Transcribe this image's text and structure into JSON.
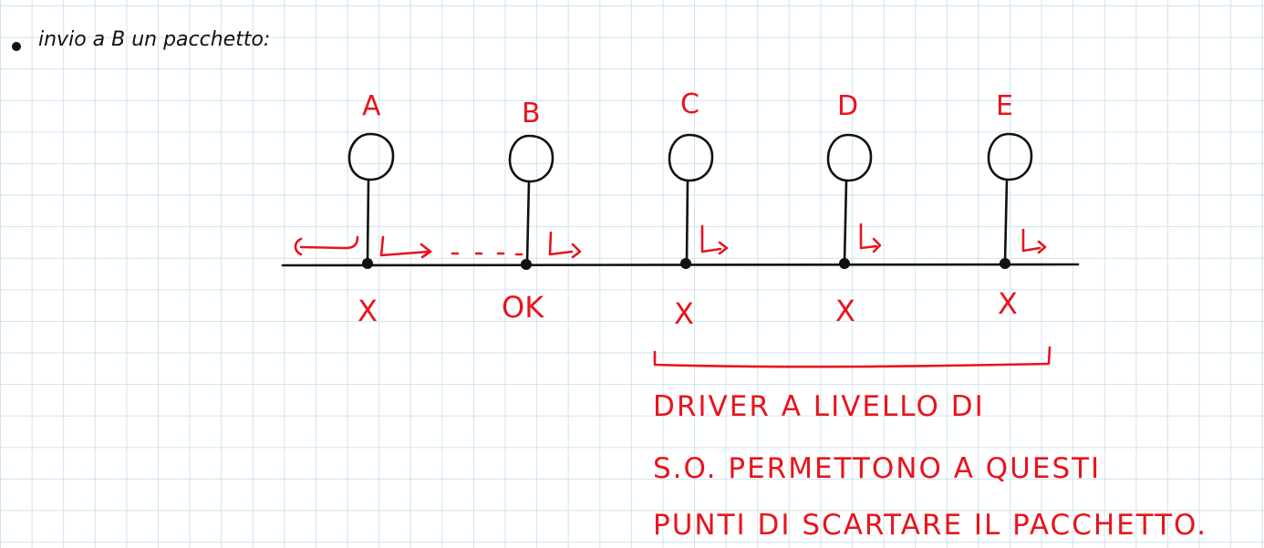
{
  "intro": {
    "text": "invio a B un pacchetto:"
  },
  "nodes": [
    {
      "label": "A",
      "status": "X"
    },
    {
      "label": "B",
      "status": "OK"
    },
    {
      "label": "C",
      "status": "X"
    },
    {
      "label": "D",
      "status": "X"
    },
    {
      "label": "E",
      "status": "X"
    }
  ],
  "note": {
    "line1": "DRIVER A LIVELLO DI",
    "line2": "S.O. PERMETTONO A QUESTI",
    "line3": "PUNTI DI SCARTARE IL PACCHETTO."
  },
  "colors": {
    "ink": "#111111",
    "annotation": "#e8141c",
    "grid": "#cfe3f0"
  }
}
